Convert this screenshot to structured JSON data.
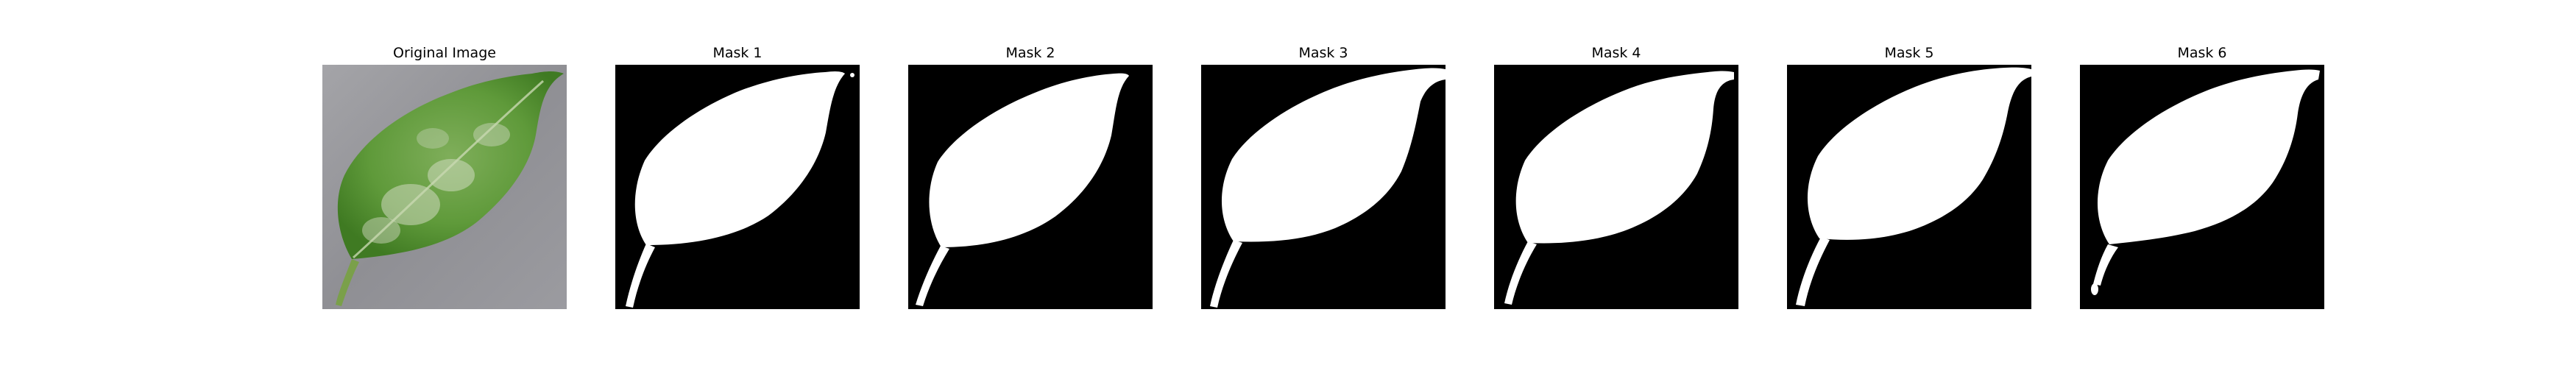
{
  "figure": {
    "panels": [
      {
        "title": "Original Image",
        "kind": "original"
      },
      {
        "title": "Mask 1",
        "kind": "mask"
      },
      {
        "title": "Mask 2",
        "kind": "mask"
      },
      {
        "title": "Mask 3",
        "kind": "mask"
      },
      {
        "title": "Mask 4",
        "kind": "mask"
      },
      {
        "title": "Mask 5",
        "kind": "mask"
      },
      {
        "title": "Mask 6",
        "kind": "mask"
      }
    ],
    "colors": {
      "background": "#9a9a9e",
      "leaf": "#5f9a3a",
      "mask_foreground": "#ffffff",
      "mask_background": "#000000"
    }
  }
}
